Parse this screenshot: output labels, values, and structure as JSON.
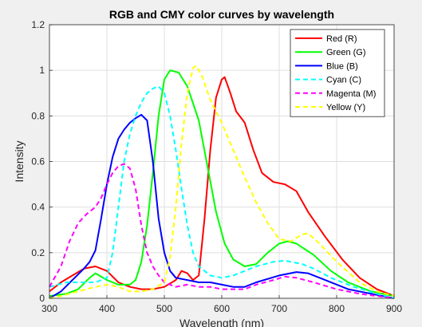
{
  "chart_data": {
    "type": "line",
    "title": "RGB and CMY color curves by wavelength",
    "xlabel": "Wavelength (nm)",
    "ylabel": "Intensity",
    "xlim": [
      300,
      900
    ],
    "ylim": [
      0,
      1.2
    ],
    "xticks": [
      300,
      400,
      500,
      600,
      700,
      800,
      900
    ],
    "yticks": [
      0,
      0.2,
      0.4,
      0.6,
      0.8,
      1,
      1.2
    ],
    "grid": true,
    "legend_position": "top-right",
    "series": [
      {
        "name": "Red (R)",
        "color": "#ff0000",
        "dash": "solid",
        "points": [
          [
            300,
            0.03
          ],
          [
            320,
            0.07
          ],
          [
            340,
            0.1
          ],
          [
            360,
            0.13
          ],
          [
            380,
            0.14
          ],
          [
            400,
            0.12
          ],
          [
            420,
            0.07
          ],
          [
            440,
            0.05
          ],
          [
            460,
            0.04
          ],
          [
            480,
            0.04
          ],
          [
            500,
            0.05
          ],
          [
            520,
            0.08
          ],
          [
            530,
            0.12
          ],
          [
            540,
            0.11
          ],
          [
            550,
            0.08
          ],
          [
            560,
            0.1
          ],
          [
            570,
            0.35
          ],
          [
            580,
            0.65
          ],
          [
            590,
            0.88
          ],
          [
            600,
            0.96
          ],
          [
            605,
            0.97
          ],
          [
            615,
            0.9
          ],
          [
            625,
            0.82
          ],
          [
            640,
            0.77
          ],
          [
            655,
            0.65
          ],
          [
            670,
            0.55
          ],
          [
            690,
            0.51
          ],
          [
            710,
            0.5
          ],
          [
            730,
            0.47
          ],
          [
            750,
            0.38
          ],
          [
            780,
            0.27
          ],
          [
            810,
            0.17
          ],
          [
            840,
            0.09
          ],
          [
            870,
            0.04
          ],
          [
            900,
            0.01
          ]
        ]
      },
      {
        "name": "Green (G)",
        "color": "#00ff00",
        "dash": "solid",
        "points": [
          [
            300,
            0.01
          ],
          [
            330,
            0.02
          ],
          [
            350,
            0.04
          ],
          [
            370,
            0.09
          ],
          [
            380,
            0.11
          ],
          [
            400,
            0.08
          ],
          [
            420,
            0.06
          ],
          [
            440,
            0.06
          ],
          [
            450,
            0.08
          ],
          [
            460,
            0.16
          ],
          [
            470,
            0.32
          ],
          [
            480,
            0.55
          ],
          [
            490,
            0.8
          ],
          [
            500,
            0.96
          ],
          [
            510,
            1.0
          ],
          [
            525,
            0.99
          ],
          [
            540,
            0.93
          ],
          [
            560,
            0.78
          ],
          [
            575,
            0.58
          ],
          [
            590,
            0.38
          ],
          [
            605,
            0.24
          ],
          [
            620,
            0.17
          ],
          [
            640,
            0.14
          ],
          [
            660,
            0.15
          ],
          [
            680,
            0.2
          ],
          [
            700,
            0.24
          ],
          [
            715,
            0.25
          ],
          [
            730,
            0.24
          ],
          [
            760,
            0.19
          ],
          [
            790,
            0.12
          ],
          [
            820,
            0.07
          ],
          [
            860,
            0.03
          ],
          [
            900,
            0.01
          ]
        ]
      },
      {
        "name": "Blue (B)",
        "color": "#0000ff",
        "dash": "solid",
        "points": [
          [
            300,
            0.0
          ],
          [
            320,
            0.03
          ],
          [
            340,
            0.08
          ],
          [
            360,
            0.13
          ],
          [
            370,
            0.16
          ],
          [
            380,
            0.21
          ],
          [
            390,
            0.35
          ],
          [
            400,
            0.5
          ],
          [
            410,
            0.62
          ],
          [
            420,
            0.7
          ],
          [
            430,
            0.74
          ],
          [
            440,
            0.77
          ],
          [
            450,
            0.79
          ],
          [
            460,
            0.805
          ],
          [
            470,
            0.78
          ],
          [
            480,
            0.6
          ],
          [
            490,
            0.35
          ],
          [
            500,
            0.2
          ],
          [
            510,
            0.12
          ],
          [
            520,
            0.09
          ],
          [
            540,
            0.08
          ],
          [
            560,
            0.07
          ],
          [
            580,
            0.07
          ],
          [
            600,
            0.06
          ],
          [
            620,
            0.05
          ],
          [
            640,
            0.05
          ],
          [
            660,
            0.07
          ],
          [
            700,
            0.1
          ],
          [
            730,
            0.115
          ],
          [
            750,
            0.11
          ],
          [
            780,
            0.08
          ],
          [
            820,
            0.04
          ],
          [
            860,
            0.02
          ],
          [
            900,
            0.0
          ]
        ]
      },
      {
        "name": "Cyan (C)",
        "color": "#00ffff",
        "dash": "dashed",
        "points": [
          [
            300,
            0.05
          ],
          [
            330,
            0.07
          ],
          [
            360,
            0.07
          ],
          [
            380,
            0.07
          ],
          [
            400,
            0.09
          ],
          [
            410,
            0.2
          ],
          [
            420,
            0.4
          ],
          [
            430,
            0.6
          ],
          [
            440,
            0.72
          ],
          [
            450,
            0.8
          ],
          [
            460,
            0.86
          ],
          [
            470,
            0.9
          ],
          [
            480,
            0.92
          ],
          [
            490,
            0.93
          ],
          [
            500,
            0.9
          ],
          [
            510,
            0.8
          ],
          [
            520,
            0.65
          ],
          [
            530,
            0.48
          ],
          [
            540,
            0.32
          ],
          [
            550,
            0.2
          ],
          [
            560,
            0.14
          ],
          [
            580,
            0.1
          ],
          [
            600,
            0.09
          ],
          [
            620,
            0.1
          ],
          [
            640,
            0.12
          ],
          [
            660,
            0.14
          ],
          [
            690,
            0.16
          ],
          [
            710,
            0.165
          ],
          [
            740,
            0.15
          ],
          [
            760,
            0.13
          ],
          [
            790,
            0.09
          ],
          [
            830,
            0.05
          ],
          [
            870,
            0.02
          ],
          [
            900,
            0.0
          ]
        ]
      },
      {
        "name": "Magenta (M)",
        "color": "#ff00ff",
        "dash": "dashed",
        "points": [
          [
            300,
            0.05
          ],
          [
            320,
            0.14
          ],
          [
            335,
            0.25
          ],
          [
            350,
            0.33
          ],
          [
            365,
            0.37
          ],
          [
            380,
            0.4
          ],
          [
            390,
            0.44
          ],
          [
            400,
            0.5
          ],
          [
            410,
            0.55
          ],
          [
            420,
            0.58
          ],
          [
            430,
            0.59
          ],
          [
            440,
            0.57
          ],
          [
            450,
            0.48
          ],
          [
            460,
            0.32
          ],
          [
            470,
            0.2
          ],
          [
            480,
            0.14
          ],
          [
            490,
            0.1
          ],
          [
            500,
            0.07
          ],
          [
            520,
            0.05
          ],
          [
            540,
            0.06
          ],
          [
            560,
            0.05
          ],
          [
            580,
            0.05
          ],
          [
            600,
            0.04
          ],
          [
            620,
            0.04
          ],
          [
            640,
            0.04
          ],
          [
            660,
            0.06
          ],
          [
            690,
            0.08
          ],
          [
            710,
            0.095
          ],
          [
            730,
            0.09
          ],
          [
            760,
            0.07
          ],
          [
            800,
            0.04
          ],
          [
            840,
            0.02
          ],
          [
            900,
            0.0
          ]
        ]
      },
      {
        "name": "Yellow (Y)",
        "color": "#ffff00",
        "dash": "dashed",
        "points": [
          [
            300,
            0.0
          ],
          [
            320,
            0.01
          ],
          [
            350,
            0.03
          ],
          [
            380,
            0.05
          ],
          [
            400,
            0.06
          ],
          [
            420,
            0.05
          ],
          [
            440,
            0.03
          ],
          [
            460,
            0.03
          ],
          [
            480,
            0.04
          ],
          [
            500,
            0.07
          ],
          [
            510,
            0.18
          ],
          [
            520,
            0.4
          ],
          [
            530,
            0.68
          ],
          [
            540,
            0.9
          ],
          [
            550,
            1.01
          ],
          [
            555,
            1.02
          ],
          [
            565,
            0.98
          ],
          [
            580,
            0.87
          ],
          [
            600,
            0.77
          ],
          [
            620,
            0.65
          ],
          [
            640,
            0.53
          ],
          [
            660,
            0.42
          ],
          [
            680,
            0.33
          ],
          [
            700,
            0.26
          ],
          [
            720,
            0.25
          ],
          [
            740,
            0.28
          ],
          [
            750,
            0.285
          ],
          [
            770,
            0.24
          ],
          [
            800,
            0.16
          ],
          [
            840,
            0.07
          ],
          [
            870,
            0.03
          ],
          [
            900,
            0.01
          ]
        ]
      }
    ]
  }
}
